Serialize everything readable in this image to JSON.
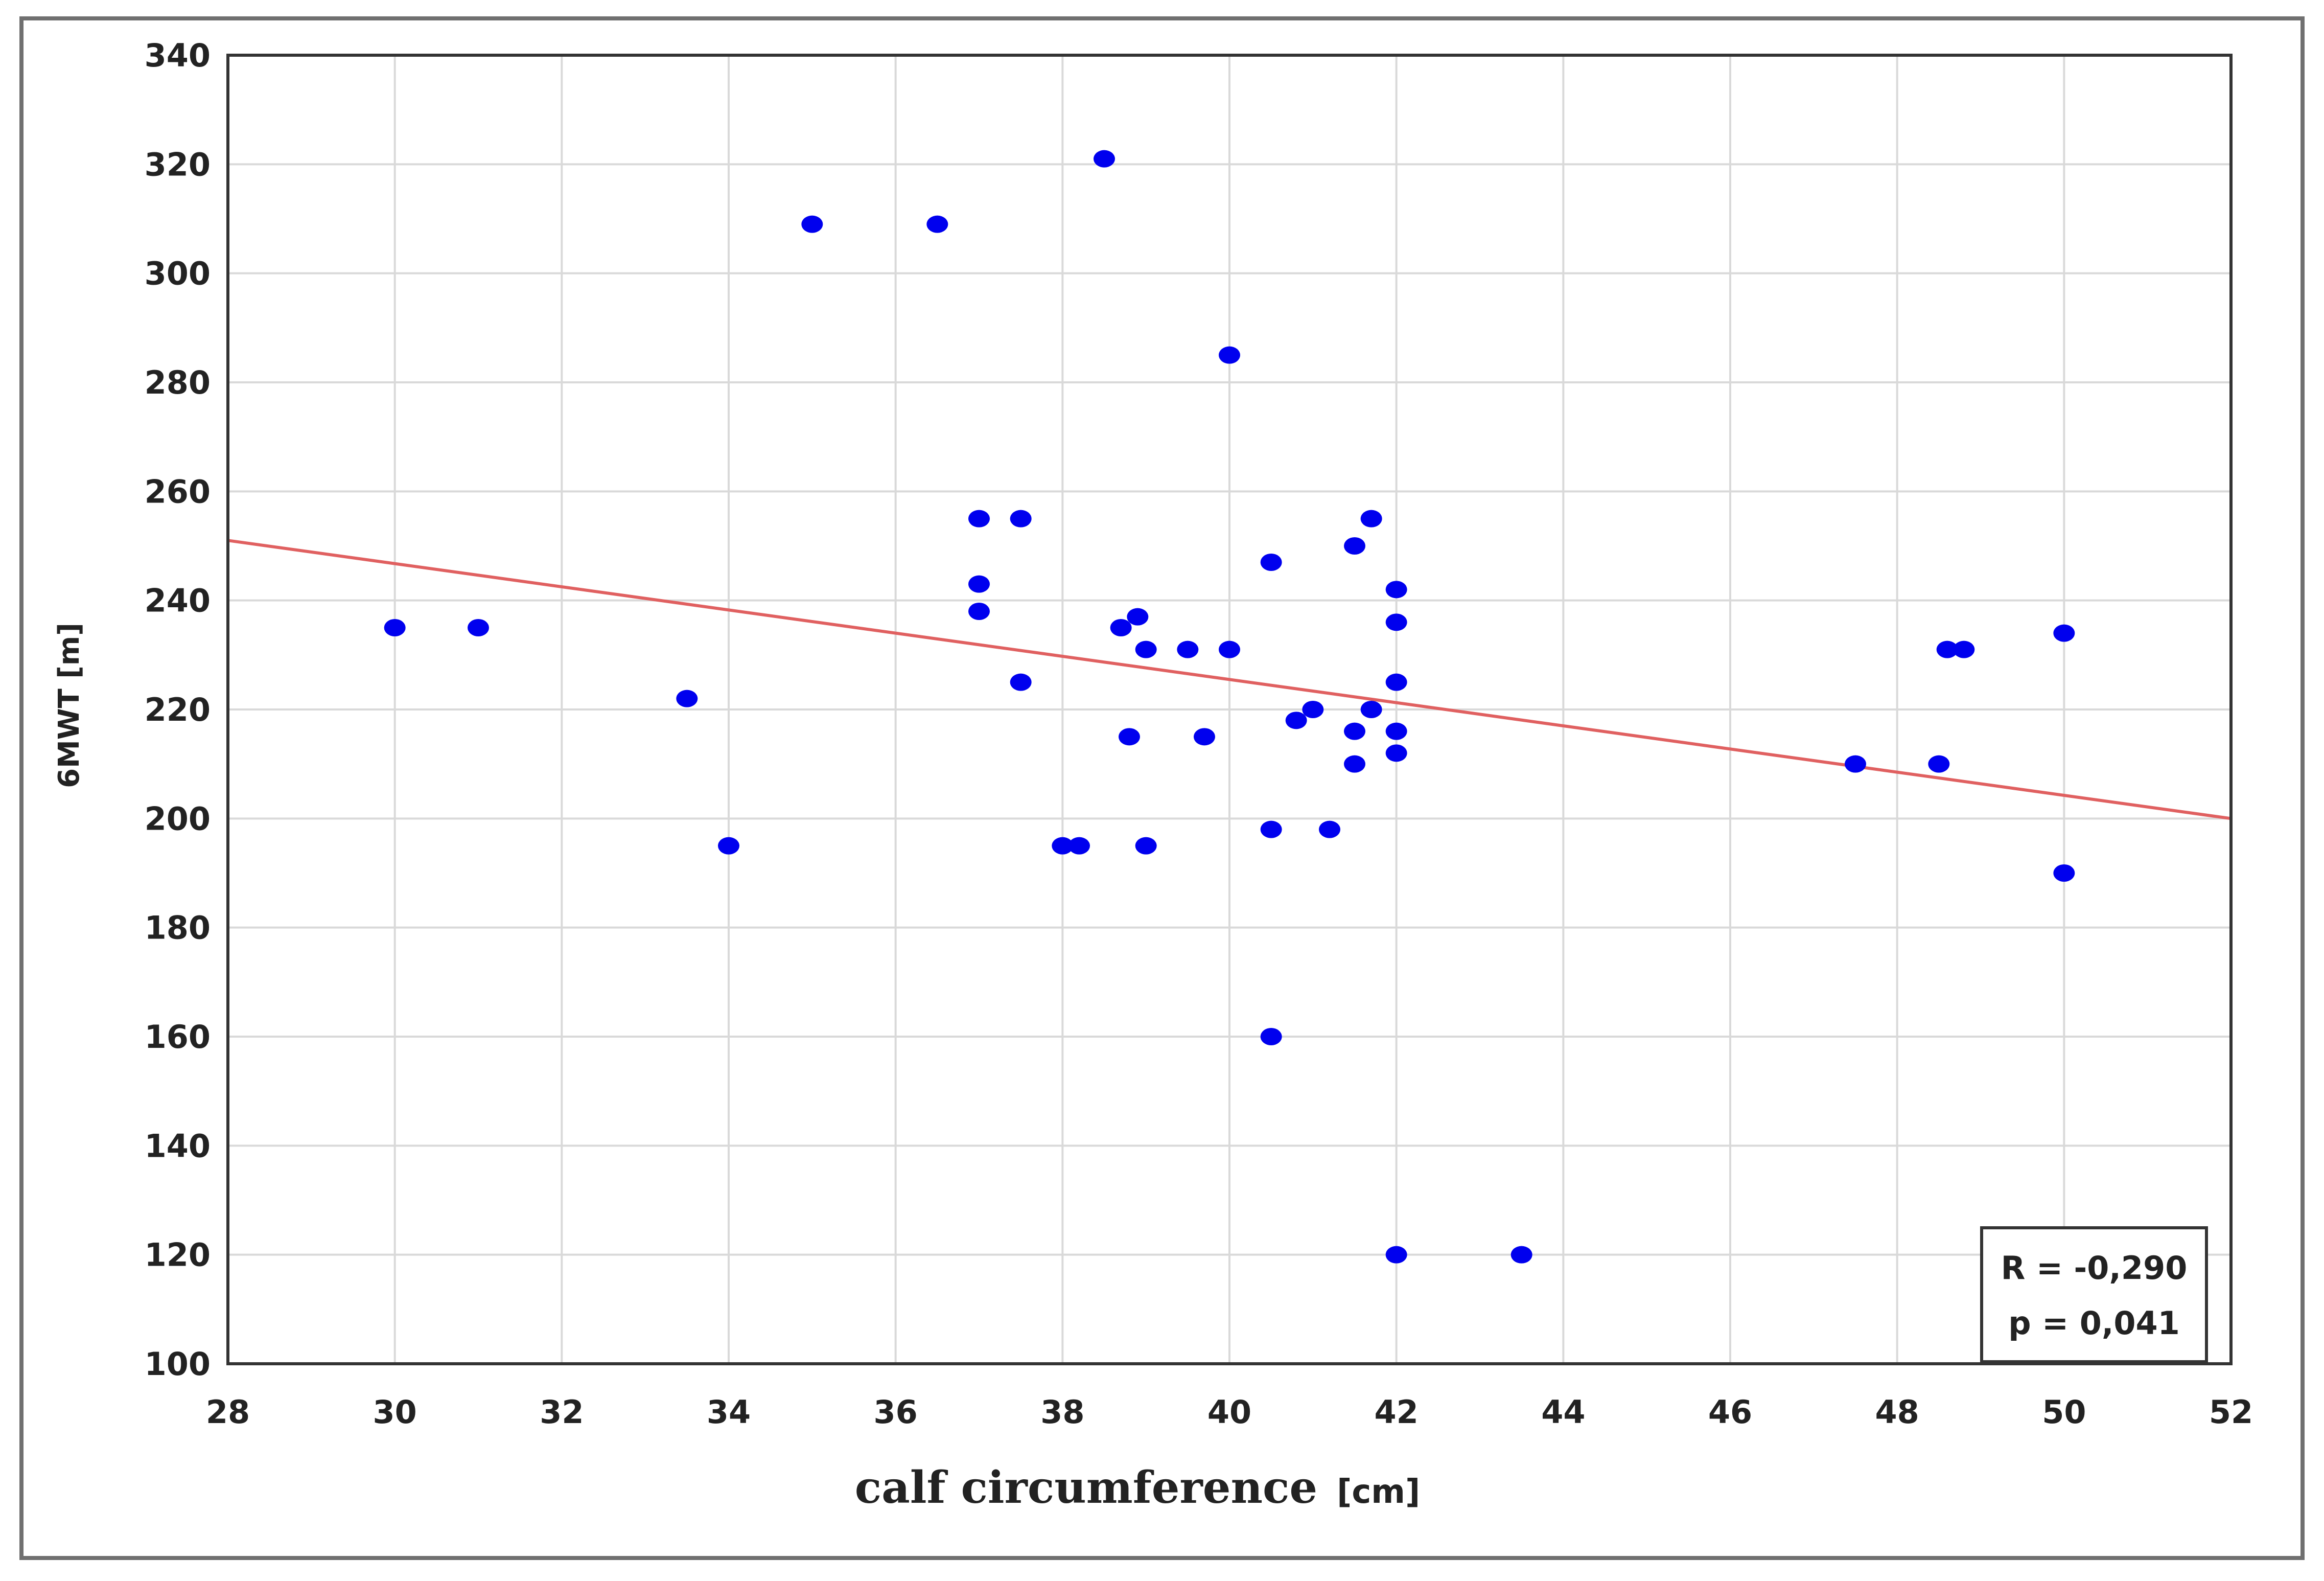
{
  "chart_data": {
    "type": "scatter",
    "title": "",
    "xlabel": "calf circumference",
    "xlabel_unit": "[cm]",
    "ylabel": "6MWT [m]",
    "xlim": [
      28,
      52
    ],
    "ylim": [
      100,
      340
    ],
    "xticks": [
      28,
      30,
      32,
      34,
      36,
      38,
      40,
      42,
      44,
      46,
      48,
      50,
      52
    ],
    "yticks": [
      100,
      120,
      140,
      160,
      180,
      200,
      220,
      240,
      260,
      280,
      300,
      320,
      340
    ],
    "grid": true,
    "series": [
      {
        "color": "#0000ee",
        "points": [
          [
            30,
            235
          ],
          [
            31,
            235
          ],
          [
            33.5,
            222
          ],
          [
            34,
            195
          ],
          [
            35,
            309
          ],
          [
            36.5,
            309
          ],
          [
            37,
            255
          ],
          [
            37,
            243
          ],
          [
            37,
            238
          ],
          [
            37.5,
            255
          ],
          [
            37.5,
            225
          ],
          [
            38,
            195
          ],
          [
            38.2,
            195
          ],
          [
            38.5,
            321
          ],
          [
            38.7,
            235
          ],
          [
            38.8,
            215
          ],
          [
            38.9,
            237
          ],
          [
            39,
            231
          ],
          [
            39,
            195
          ],
          [
            39.5,
            231
          ],
          [
            39.7,
            215
          ],
          [
            40,
            285
          ],
          [
            40,
            231
          ],
          [
            40.5,
            247
          ],
          [
            40.5,
            198
          ],
          [
            40.5,
            160
          ],
          [
            40.8,
            218
          ],
          [
            41,
            220
          ],
          [
            41.2,
            198
          ],
          [
            41.5,
            250
          ],
          [
            41.5,
            216
          ],
          [
            41.5,
            210
          ],
          [
            41.7,
            255
          ],
          [
            41.7,
            220
          ],
          [
            42,
            242
          ],
          [
            42,
            236
          ],
          [
            42,
            225
          ],
          [
            42,
            216
          ],
          [
            42,
            212
          ],
          [
            42,
            120
          ],
          [
            43.5,
            120
          ],
          [
            47.5,
            210
          ],
          [
            48.5,
            210
          ],
          [
            48.6,
            231
          ],
          [
            48.8,
            231
          ],
          [
            50,
            234
          ],
          [
            50,
            190
          ]
        ]
      }
    ],
    "fit_line": {
      "color": "#e06060",
      "x": [
        28,
        52
      ],
      "y": [
        251,
        200
      ]
    },
    "stats_box": {
      "position": "bottom-right",
      "lines": [
        "R = -0,290",
        "p = 0,041"
      ]
    }
  }
}
